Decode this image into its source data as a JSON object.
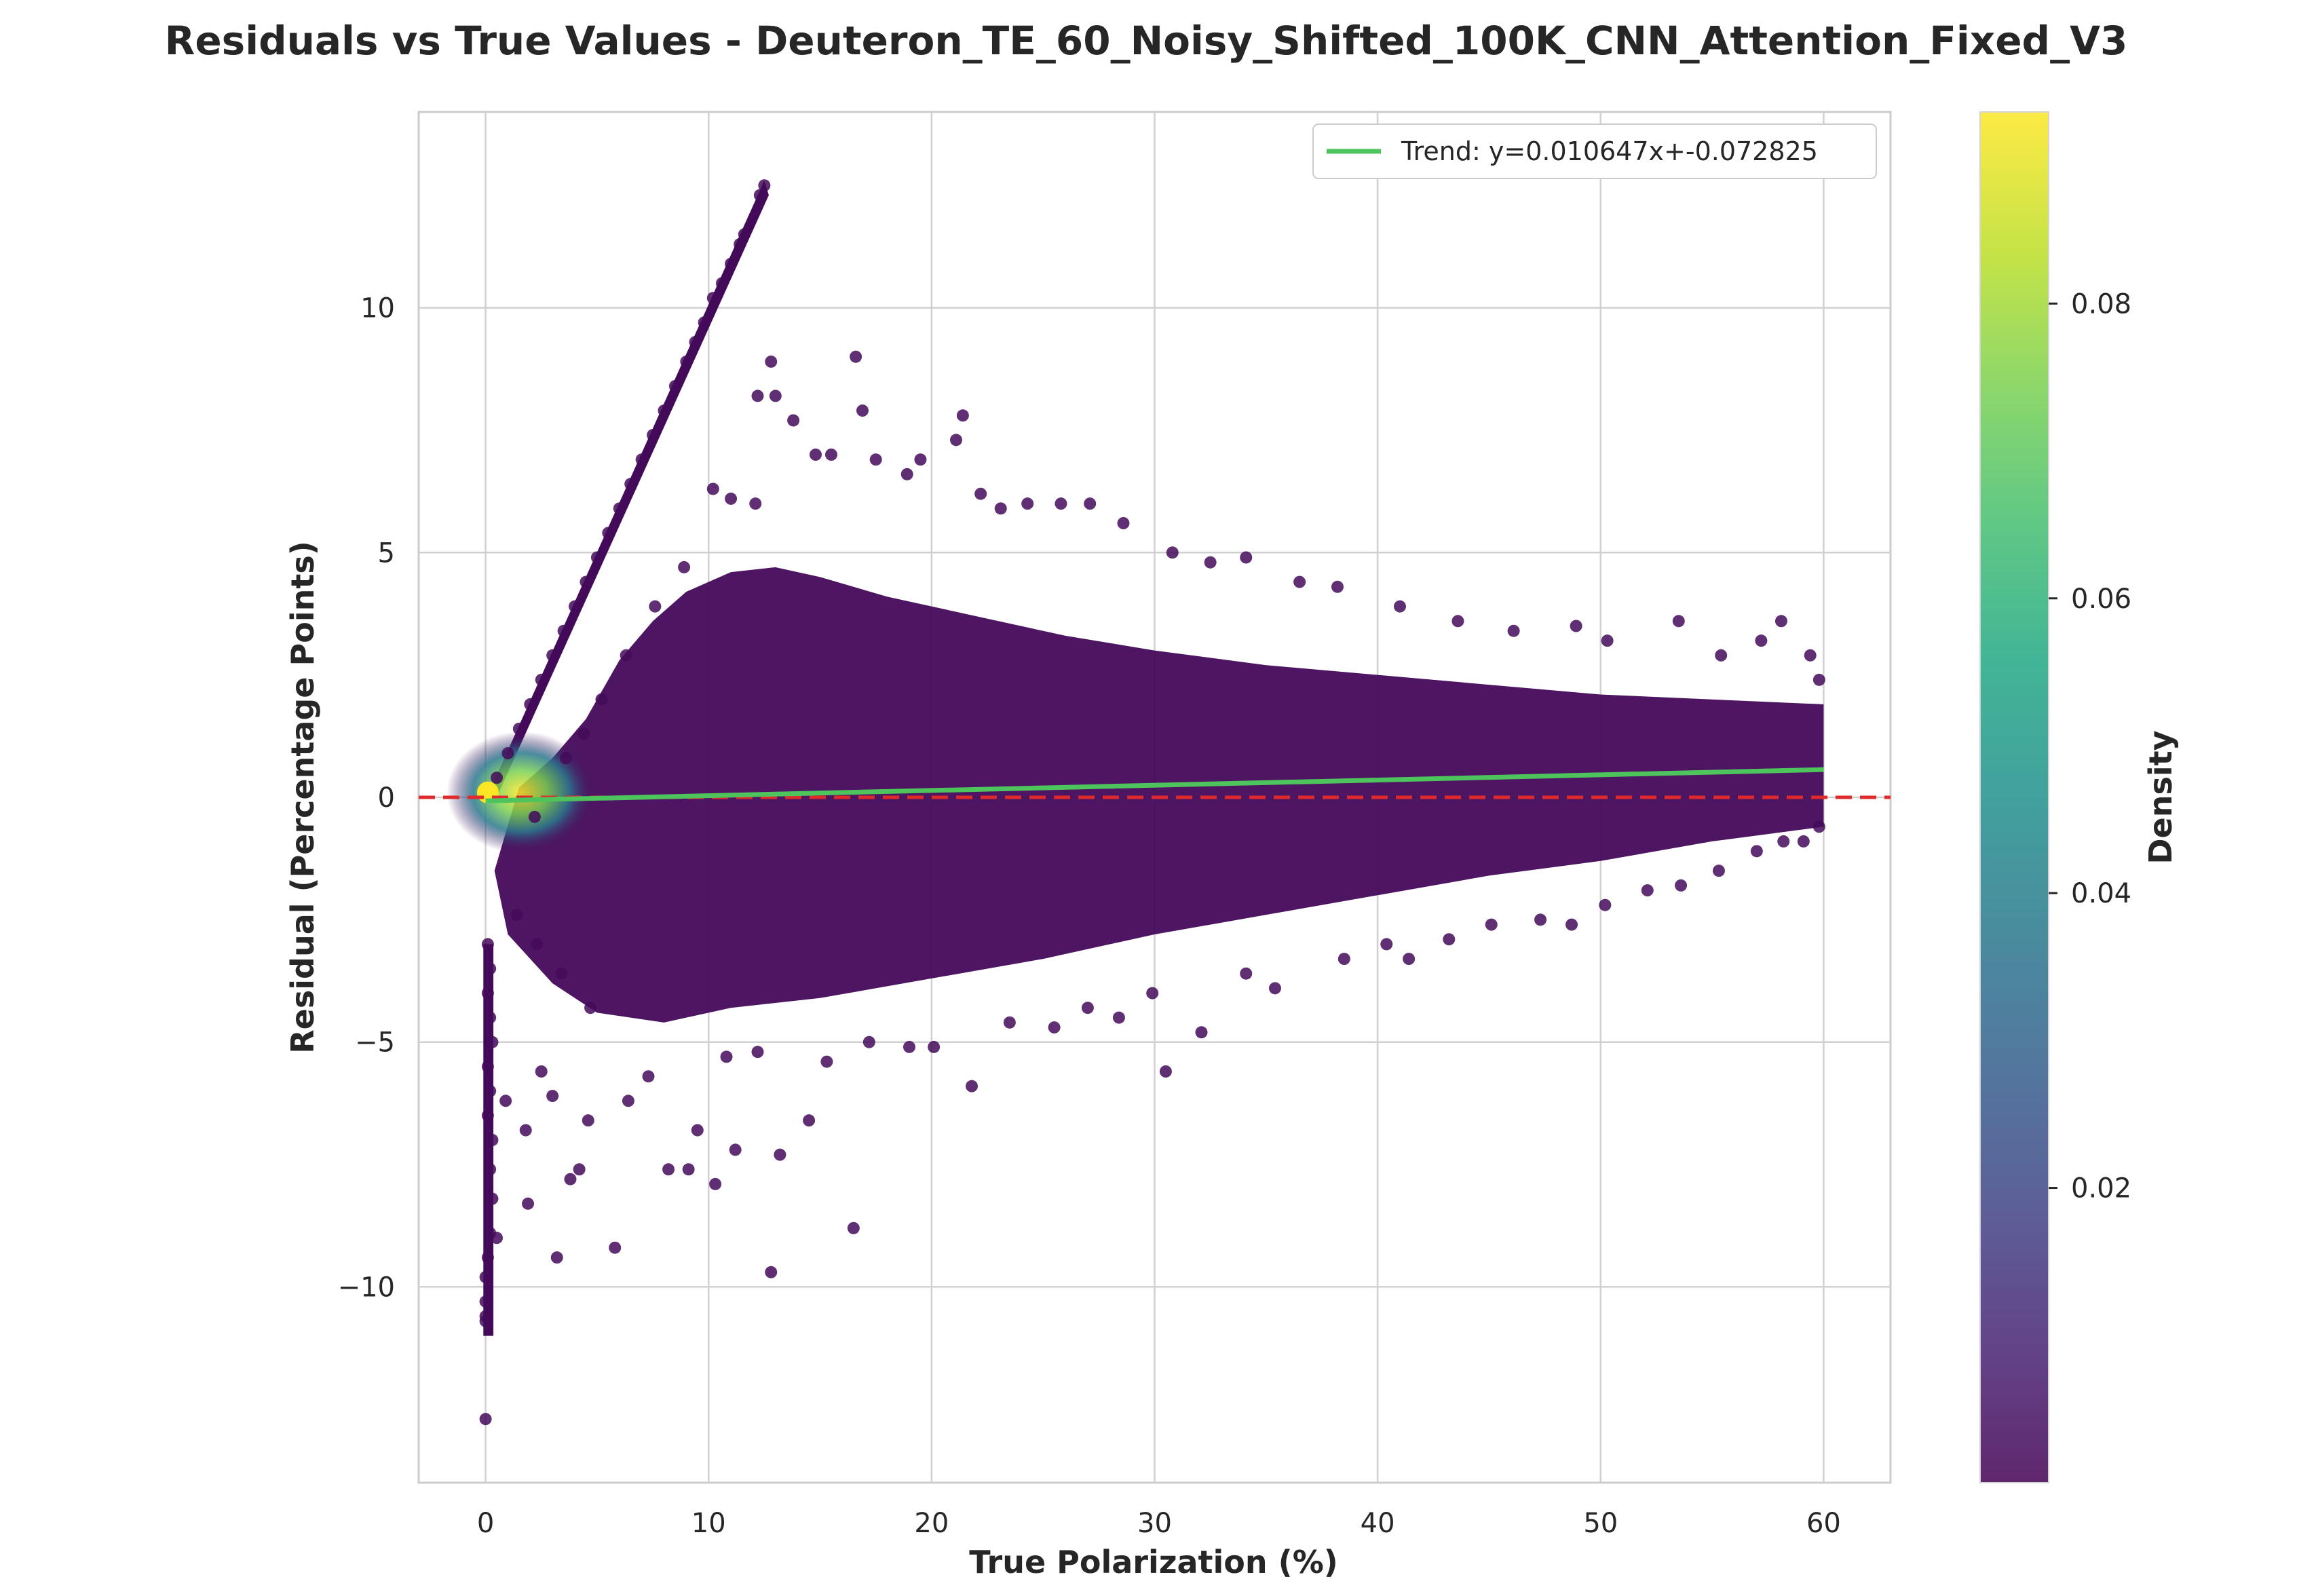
{
  "chart_data": {
    "type": "scatter",
    "title": "Residuals vs True Values - Deuteron_TE_60_Noisy_Shifted_100K_CNN_Attention_Fixed_V3",
    "xlabel": "True Polarization (%)",
    "ylabel": "Residual (Percentage Points)",
    "xlim": [
      -3,
      63
    ],
    "ylim": [
      -14,
      14
    ],
    "x_ticks": [
      0,
      10,
      20,
      30,
      40,
      50,
      60
    ],
    "x_tick_labels": [
      "0",
      "10",
      "20",
      "30",
      "40",
      "50",
      "60"
    ],
    "y_ticks": [
      -10,
      -5,
      0,
      5,
      10
    ],
    "y_tick_labels": [
      "−10",
      "−5",
      "0",
      "5",
      "10"
    ],
    "grid": true,
    "legend_position": "top-right",
    "legend": [
      "Trend: y=0.010647x+-0.072825"
    ],
    "trend": {
      "slope": 0.010647,
      "intercept": -0.072825,
      "x_range": [
        0,
        60
      ],
      "color": "#4ec45c"
    },
    "zero_line": {
      "y": 0,
      "color": "#e0292a",
      "style": "dashed"
    },
    "colorbar": {
      "label": "Density",
      "range": [
        0,
        0.093
      ],
      "ticks": [
        0.02,
        0.04,
        0.06,
        0.08
      ],
      "tick_labels": [
        "0.02",
        "0.04",
        "0.06",
        "0.08"
      ],
      "colormap": "viridis"
    },
    "point_color": "#440a5a",
    "points": [
      [
        0,
        -12.7
      ],
      [
        0,
        -10.7
      ],
      [
        0,
        -10.6
      ],
      [
        0,
        -10.3
      ],
      [
        0,
        -9.8
      ],
      [
        0.1,
        -9.4
      ],
      [
        0.2,
        -8.9
      ],
      [
        0.3,
        -8.2
      ],
      [
        0.2,
        -7.6
      ],
      [
        0.3,
        -7.0
      ],
      [
        0.1,
        -6.5
      ],
      [
        0.2,
        -6.0
      ],
      [
        0.1,
        -5.5
      ],
      [
        0.3,
        -5.0
      ],
      [
        0.2,
        -4.5
      ],
      [
        0.1,
        -4.0
      ],
      [
        0.2,
        -3.5
      ],
      [
        0.1,
        -3.0
      ],
      [
        0.5,
        -9.0
      ],
      [
        1.9,
        -8.3
      ],
      [
        3.2,
        -9.4
      ],
      [
        5.8,
        -9.2
      ],
      [
        4.2,
        -7.6
      ],
      [
        3.8,
        -7.8
      ],
      [
        8.2,
        -7.6
      ],
      [
        9.1,
        -7.6
      ],
      [
        10.3,
        -7.9
      ],
      [
        11.2,
        -7.2
      ],
      [
        13.2,
        -7.3
      ],
      [
        14.5,
        -6.6
      ],
      [
        16.5,
        -8.8
      ],
      [
        12.8,
        -9.7
      ],
      [
        21.8,
        -5.9
      ],
      [
        30.5,
        -5.6
      ],
      [
        32.1,
        -4.8
      ],
      [
        28.4,
        -4.5
      ],
      [
        25.5,
        -4.7
      ],
      [
        0.9,
        -6.2
      ],
      [
        1.8,
        -6.8
      ],
      [
        2.5,
        -5.6
      ],
      [
        3.0,
        -6.1
      ],
      [
        4.6,
        -6.6
      ],
      [
        6.4,
        -6.2
      ],
      [
        7.3,
        -5.7
      ],
      [
        9.5,
        -6.8
      ],
      [
        10.8,
        -5.3
      ],
      [
        12.2,
        -5.2
      ],
      [
        15.3,
        -5.4
      ],
      [
        17.2,
        -5.0
      ],
      [
        19.0,
        -5.1
      ],
      [
        20.1,
        -5.1
      ],
      [
        23.5,
        -4.6
      ],
      [
        27.0,
        -4.3
      ],
      [
        29.9,
        -4.0
      ],
      [
        34.1,
        -3.6
      ],
      [
        35.4,
        -3.9
      ],
      [
        38.5,
        -3.3
      ],
      [
        40.4,
        -3.0
      ],
      [
        41.4,
        -3.3
      ],
      [
        43.2,
        -2.9
      ],
      [
        45.1,
        -2.6
      ],
      [
        47.3,
        -2.5
      ],
      [
        48.7,
        -2.6
      ],
      [
        50.2,
        -2.2
      ],
      [
        52.1,
        -1.9
      ],
      [
        53.6,
        -1.8
      ],
      [
        55.3,
        -1.5
      ],
      [
        57.0,
        -1.1
      ],
      [
        58.2,
        -0.9
      ],
      [
        59.1,
        -0.9
      ],
      [
        59.8,
        -0.6
      ],
      [
        12.5,
        12.5
      ],
      [
        12.3,
        12.3
      ],
      [
        11.6,
        11.5
      ],
      [
        11.4,
        11.3
      ],
      [
        11.0,
        10.9
      ],
      [
        10.6,
        10.5
      ],
      [
        10.2,
        10.2
      ],
      [
        9.8,
        9.7
      ],
      [
        9.4,
        9.3
      ],
      [
        9.0,
        8.9
      ],
      [
        8.5,
        8.4
      ],
      [
        8.0,
        7.9
      ],
      [
        7.5,
        7.4
      ],
      [
        7.0,
        6.9
      ],
      [
        6.5,
        6.4
      ],
      [
        6.0,
        5.9
      ],
      [
        5.5,
        5.4
      ],
      [
        5.0,
        4.9
      ],
      [
        4.5,
        4.4
      ],
      [
        4.0,
        3.9
      ],
      [
        3.5,
        3.4
      ],
      [
        3.0,
        2.9
      ],
      [
        2.5,
        2.4
      ],
      [
        2.0,
        1.9
      ],
      [
        1.5,
        1.4
      ],
      [
        1.0,
        0.9
      ],
      [
        0.5,
        0.4
      ],
      [
        12.8,
        8.9
      ],
      [
        16.6,
        9.0
      ],
      [
        21.4,
        7.8
      ],
      [
        16.9,
        7.9
      ],
      [
        13.8,
        7.7
      ],
      [
        13.0,
        8.2
      ],
      [
        12.2,
        8.2
      ],
      [
        14.8,
        7.0
      ],
      [
        15.5,
        7.0
      ],
      [
        17.5,
        6.9
      ],
      [
        18.9,
        6.6
      ],
      [
        19.5,
        6.9
      ],
      [
        21.1,
        7.3
      ],
      [
        22.2,
        6.2
      ],
      [
        23.1,
        5.9
      ],
      [
        24.3,
        6.0
      ],
      [
        25.8,
        6.0
      ],
      [
        27.1,
        6.0
      ],
      [
        28.6,
        5.6
      ],
      [
        30.8,
        5.0
      ],
      [
        32.5,
        4.8
      ],
      [
        34.1,
        4.9
      ],
      [
        36.5,
        4.4
      ],
      [
        38.2,
        4.3
      ],
      [
        41.0,
        3.9
      ],
      [
        43.6,
        3.6
      ],
      [
        46.1,
        3.4
      ],
      [
        48.9,
        3.5
      ],
      [
        50.3,
        3.2
      ],
      [
        53.5,
        3.6
      ],
      [
        55.4,
        2.9
      ],
      [
        57.2,
        3.2
      ],
      [
        58.1,
        3.6
      ],
      [
        59.4,
        2.9
      ],
      [
        59.8,
        2.4
      ],
      [
        10.2,
        6.3
      ],
      [
        11.0,
        6.1
      ],
      [
        12.1,
        6.0
      ],
      [
        8.9,
        4.7
      ],
      [
        7.6,
        3.9
      ],
      [
        6.3,
        2.9
      ],
      [
        5.2,
        2.0
      ],
      [
        4.4,
        1.3
      ],
      [
        3.6,
        0.8
      ],
      [
        2.2,
        -0.4
      ],
      [
        1.4,
        -2.4
      ],
      [
        2.3,
        -3.0
      ],
      [
        3.4,
        -3.6
      ],
      [
        4.7,
        -4.3
      ]
    ]
  }
}
